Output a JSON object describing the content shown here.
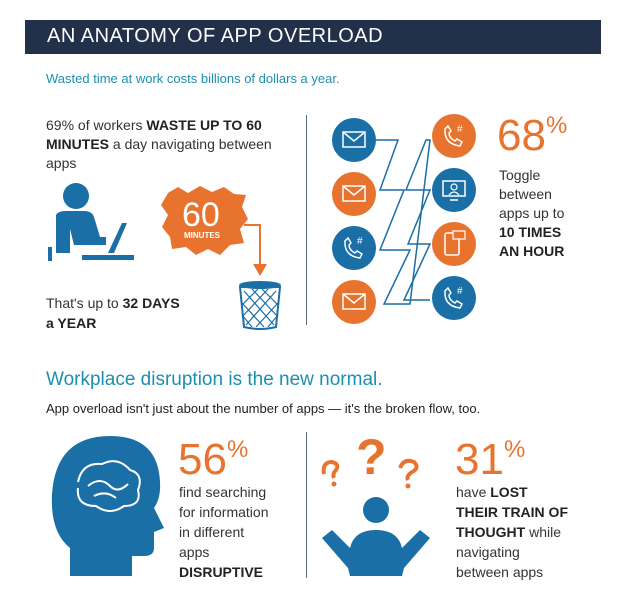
{
  "header": {
    "title": "AN ANATOMY OF APP OVERLOAD"
  },
  "intro": {
    "subtitle": "Wasted time at work costs billions of dollars a year."
  },
  "stat_waste": {
    "pre": "69% of workers ",
    "bold": "WASTE UP TO 60 MINUTES",
    "post": " a day navigating between apps"
  },
  "badge": {
    "number": "60",
    "label": "MINUTES"
  },
  "stat_days": {
    "pre": "That's up to ",
    "bold1": "32 DAYS",
    "bold2": "a YEAR"
  },
  "stat_toggle": {
    "number": "68",
    "percent": "%",
    "lines": [
      "Toggle",
      "between",
      "apps up to"
    ],
    "bold": [
      "10 TIMES",
      "AN HOUR"
    ]
  },
  "section2": {
    "heading": "Workplace disruption is the new normal.",
    "subtitle": "App overload isn't just about the number of apps — it's the broken flow, too."
  },
  "stat_search": {
    "number": "56",
    "percent": "%",
    "lines": [
      "find searching",
      "for information",
      "in different",
      "apps"
    ],
    "bold": "DISRUPTIVE"
  },
  "stat_thought": {
    "number": "31",
    "percent": "%",
    "pre": "have ",
    "bold1": "LOST",
    "bold2": "THEIR TRAIN OF",
    "bold3": "THOUGHT",
    "post1": " while",
    "lines": [
      "navigating",
      "between apps"
    ]
  },
  "colors": {
    "navy": "#22304a",
    "orange": "#e8732f",
    "blue": "#1a6fa6",
    "teal": "#1b8fb0"
  },
  "icons": [
    "person-laptop-icon",
    "trash-can-icon",
    "email-icon",
    "phone-icon",
    "monitor-icon",
    "mobile-chat-icon",
    "head-brain-icon",
    "confused-person-icon"
  ]
}
